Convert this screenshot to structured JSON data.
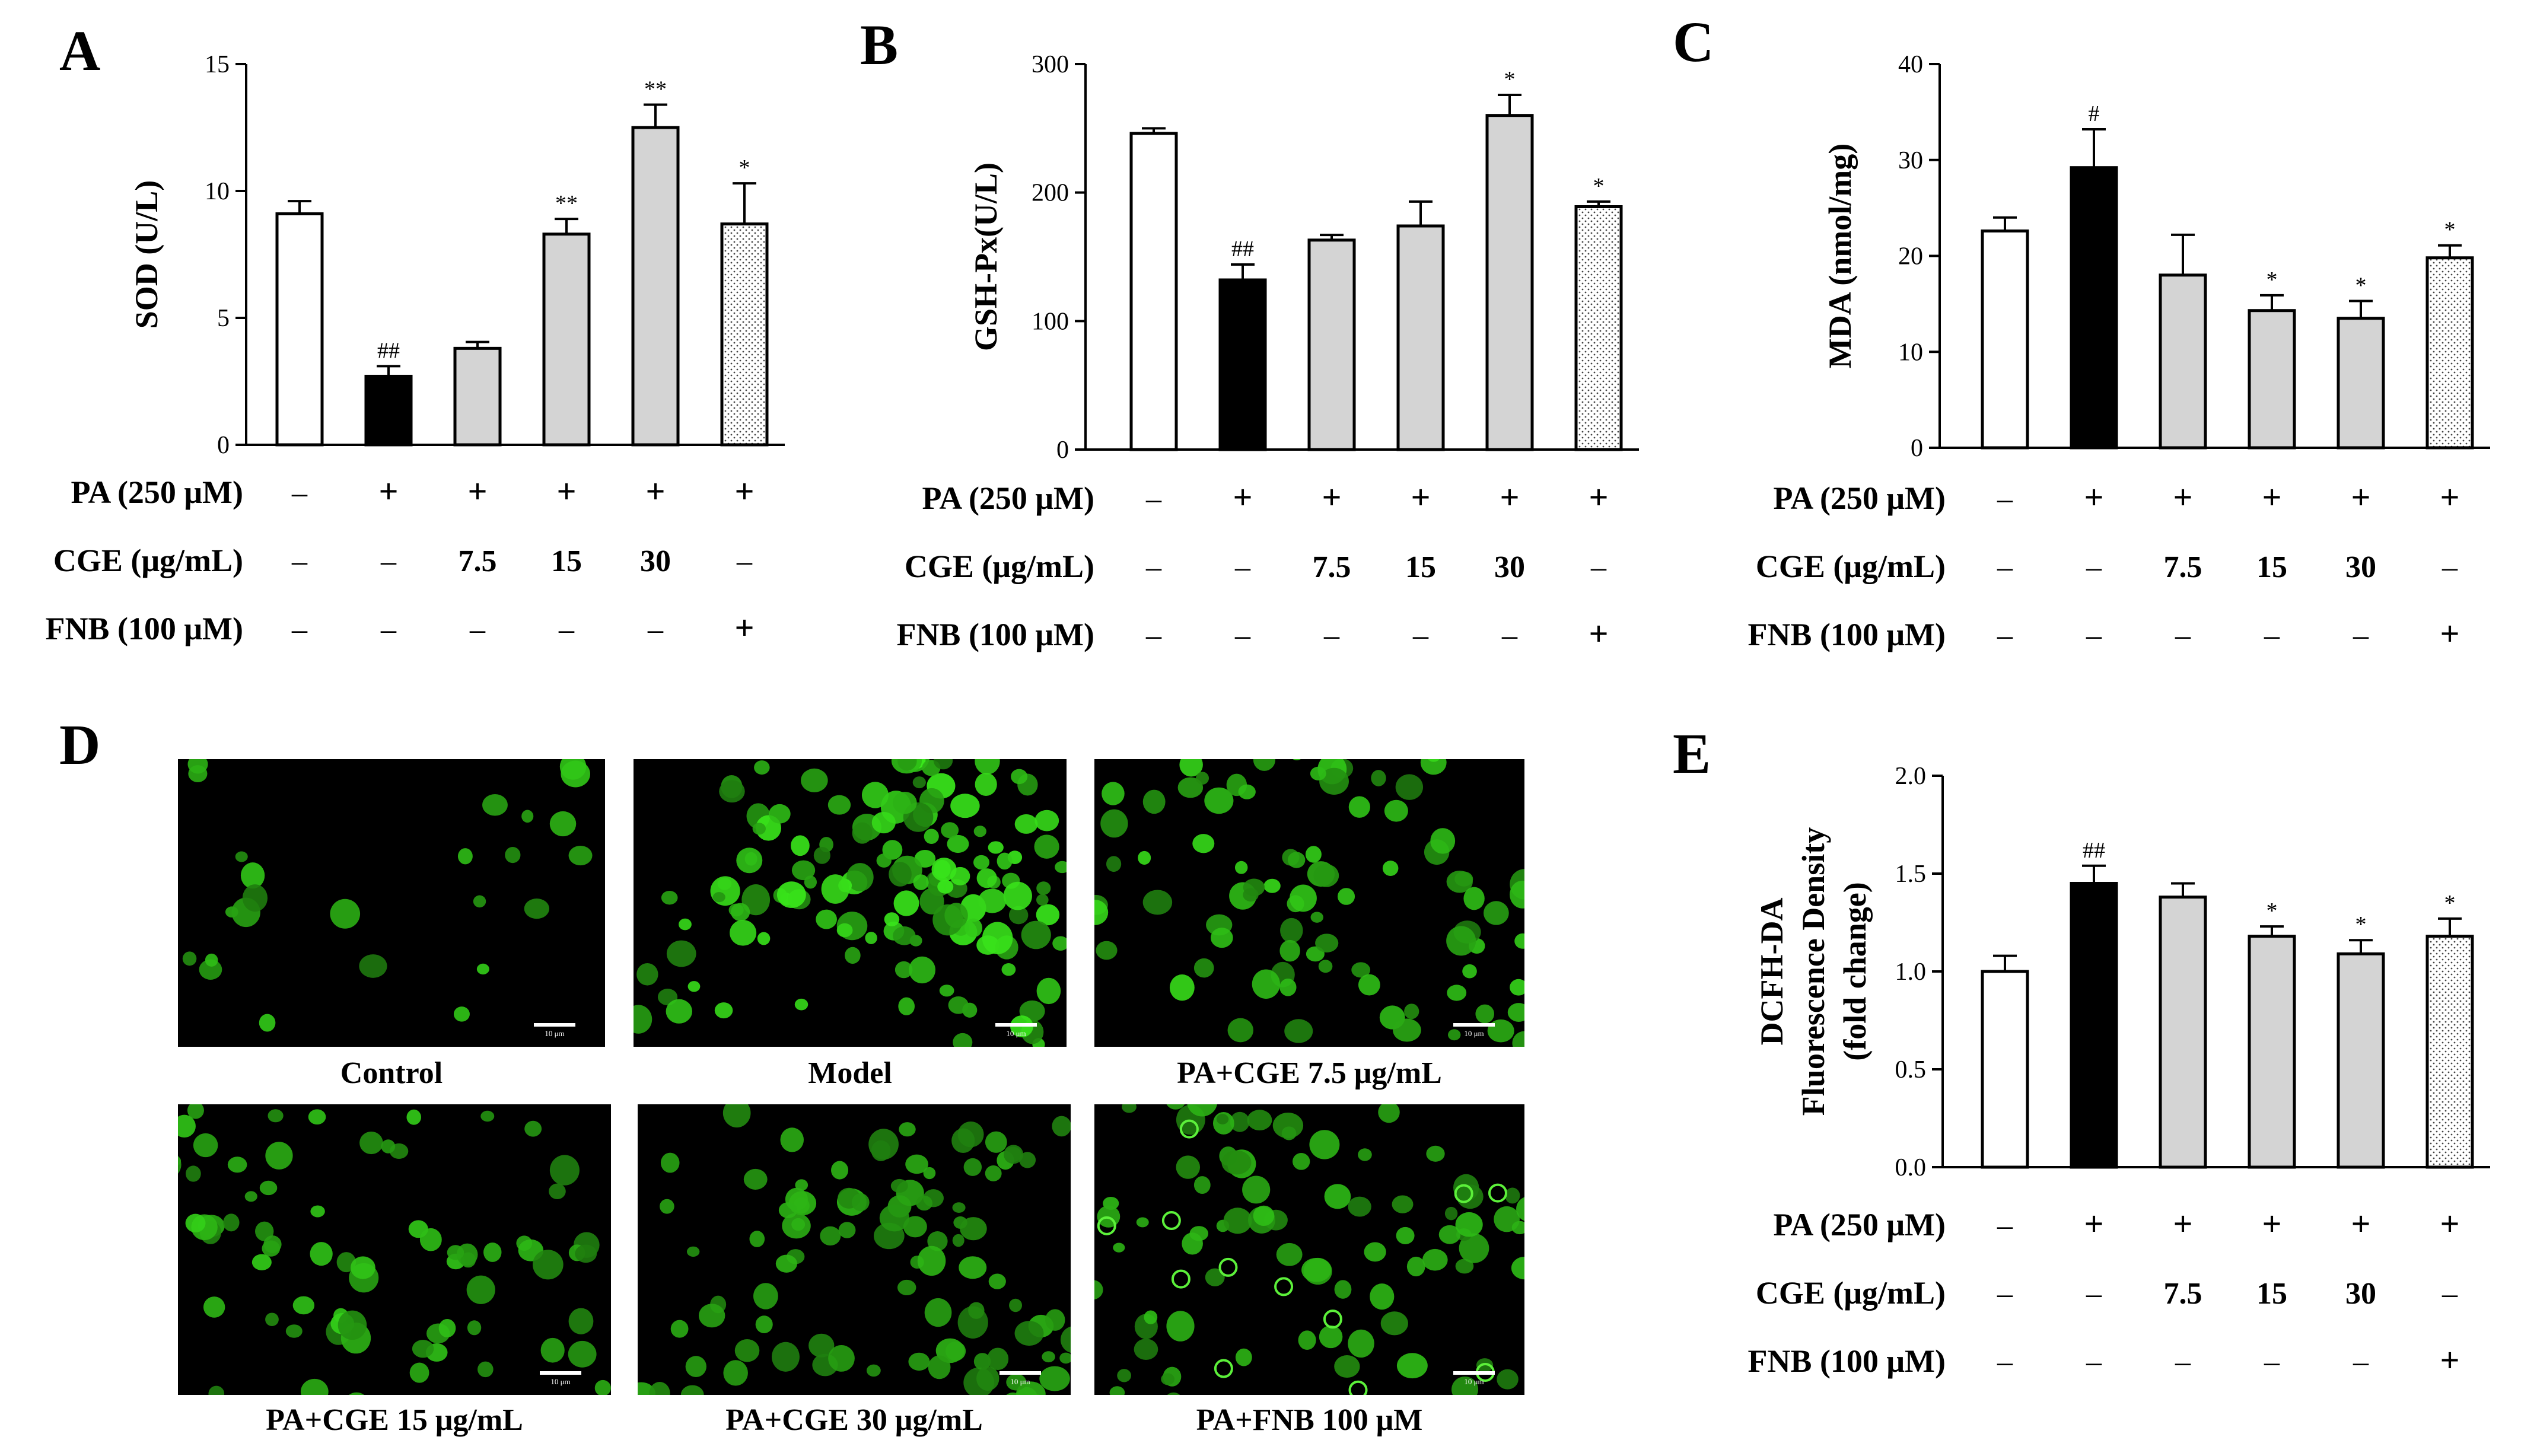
{
  "chart_data": [
    {
      "panel": "A",
      "type": "bar",
      "ylabel": "SOD (U/L)",
      "ylim": [
        0,
        15
      ],
      "yticks": [
        "0",
        "5",
        "10",
        "15"
      ],
      "values": [
        9.1,
        2.7,
        3.8,
        8.3,
        12.5,
        8.7
      ],
      "errors": [
        0.5,
        0.4,
        0.25,
        0.6,
        0.9,
        1.6
      ],
      "annotations": [
        "",
        "##",
        "",
        "**",
        "**",
        "*"
      ],
      "fills": [
        "white",
        "black",
        "gray",
        "gray",
        "gray",
        "dots"
      ]
    },
    {
      "panel": "B",
      "type": "bar",
      "ylabel": "GSH-Px(U/L)",
      "ylim": [
        0,
        300
      ],
      "yticks": [
        "0",
        "100",
        "200",
        "300"
      ],
      "values": [
        246,
        132,
        163,
        174,
        260,
        189
      ],
      "errors": [
        4,
        12,
        4,
        19,
        16,
        4
      ],
      "annotations": [
        "",
        "##",
        "",
        "",
        "*",
        "*"
      ],
      "fills": [
        "white",
        "black",
        "gray",
        "gray",
        "gray",
        "dots"
      ]
    },
    {
      "panel": "C",
      "type": "bar",
      "ylabel": "MDA (nmol/mg)",
      "ylim": [
        0,
        40
      ],
      "yticks": [
        "0",
        "10",
        "20",
        "30",
        "40"
      ],
      "values": [
        22.6,
        29.2,
        18.0,
        14.3,
        13.5,
        19.8
      ],
      "errors": [
        1.4,
        4.0,
        4.2,
        1.6,
        1.8,
        1.3
      ],
      "annotations": [
        "",
        "#",
        "",
        "*",
        "*",
        "*"
      ],
      "fills": [
        "white",
        "black",
        "gray",
        "gray",
        "gray",
        "dots"
      ]
    },
    {
      "panel": "E",
      "type": "bar",
      "ylabel_lines": [
        "DCFH-DA",
        "Fluorescence Density",
        "(fold change)"
      ],
      "ylim": [
        0,
        2.0
      ],
      "yticks": [
        "0.0",
        "0.5",
        "1.0",
        "1.5",
        "2.0"
      ],
      "values": [
        1.0,
        1.45,
        1.38,
        1.18,
        1.09,
        1.18
      ],
      "errors": [
        0.08,
        0.09,
        0.07,
        0.05,
        0.07,
        0.09
      ],
      "annotations": [
        "",
        "##",
        "",
        "*",
        "*",
        "*"
      ],
      "fills": [
        "white",
        "black",
        "gray",
        "gray",
        "gray",
        "dots"
      ]
    }
  ],
  "treatment_table": {
    "rows": [
      {
        "label": "PA (250 μM)",
        "cells": [
          "–",
          "+",
          "+",
          "+",
          "+",
          "+"
        ]
      },
      {
        "label": "CGE (μg/mL)",
        "cells": [
          "–",
          "–",
          "7.5",
          "15",
          "30",
          "–"
        ]
      },
      {
        "label": "FNB (100 μM)",
        "cells": [
          "–",
          "–",
          "–",
          "–",
          "–",
          "+"
        ]
      }
    ]
  },
  "panel_letters": {
    "a": "A",
    "b": "B",
    "c": "C",
    "d": "D",
    "e": "E"
  },
  "micrographs": [
    {
      "caption": "Control",
      "scale": "10 μm"
    },
    {
      "caption": "Model",
      "scale": "10 μm"
    },
    {
      "caption": "PA+CGE 7.5 μg/mL",
      "scale": "10 μm"
    },
    {
      "caption": "PA+CGE 15 μg/mL",
      "scale": "10 μm"
    },
    {
      "caption": "PA+CGE 30 μg/mL",
      "scale": "10 μm"
    },
    {
      "caption": "PA+FNB 100 μM",
      "scale": "10 μm"
    }
  ],
  "colors": {
    "gray_bar": "#d4d4d4",
    "black_bar": "#000000",
    "cell_green": "#3fc92a",
    "background": "#ffffff"
  }
}
